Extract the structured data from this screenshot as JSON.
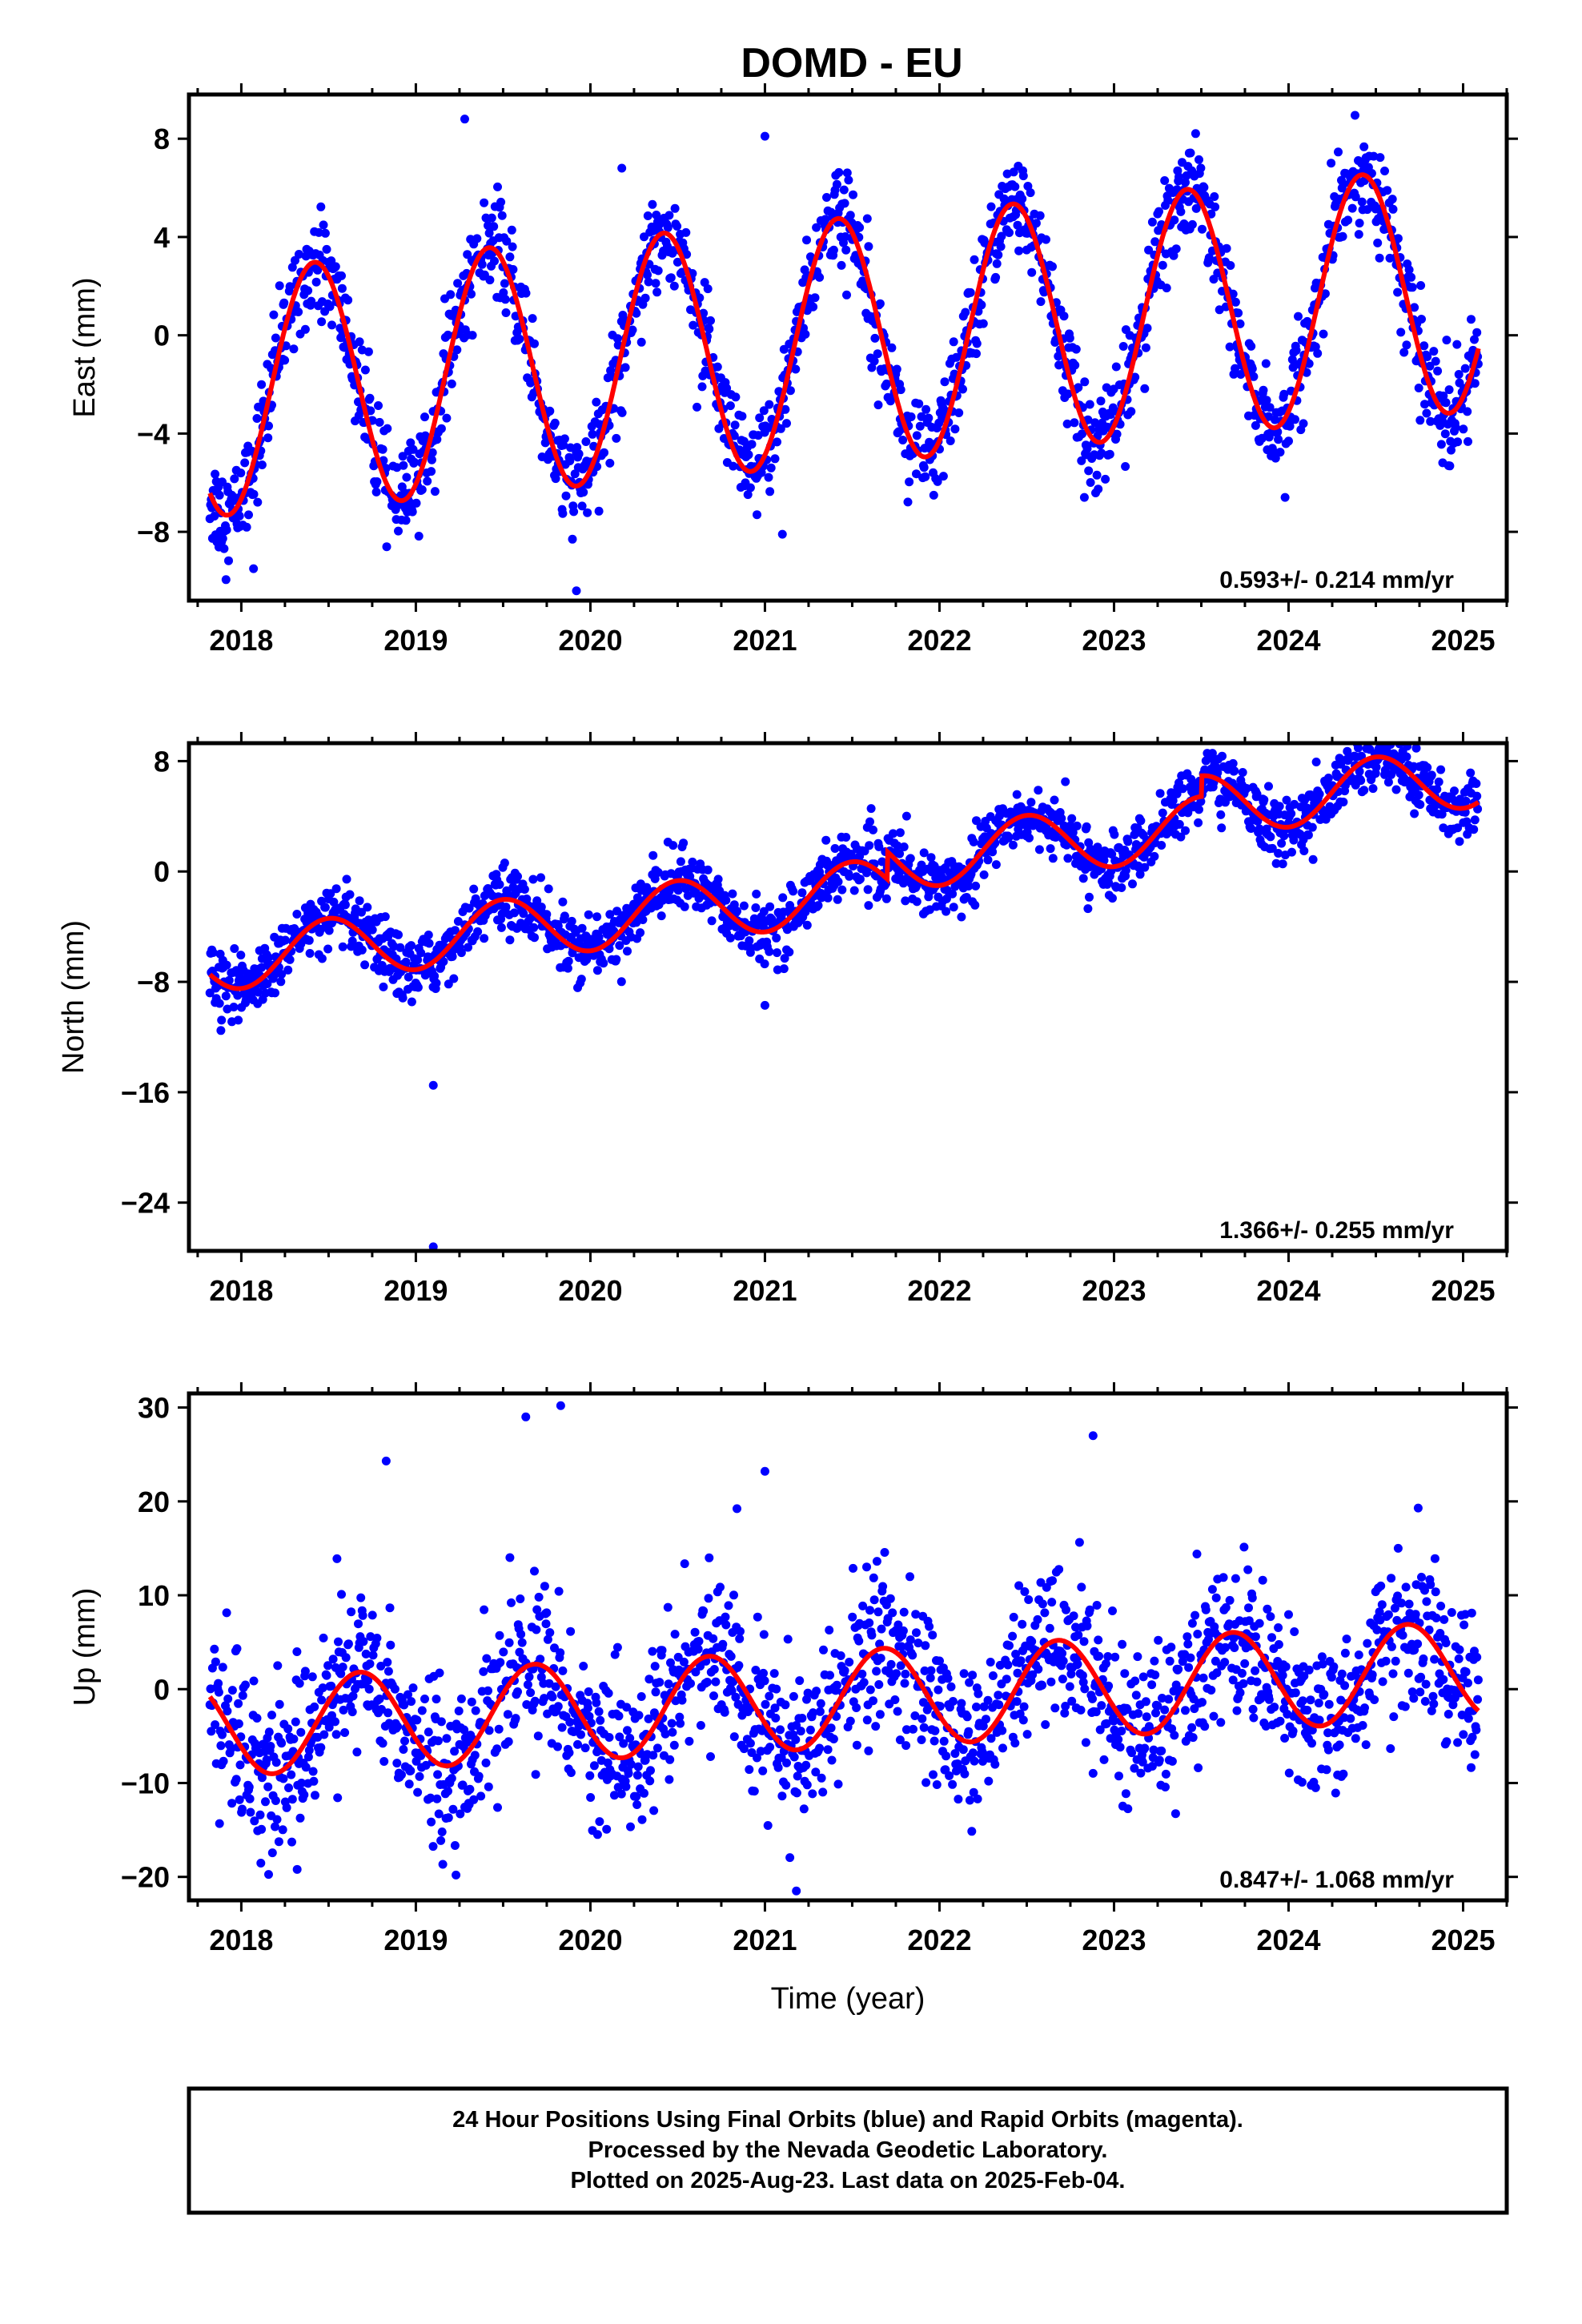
{
  "title": "DOMD - EU",
  "footer": {
    "line1": "24 Hour Positions Using Final Orbits (blue) and Rapid Orbits (magenta).",
    "line2": "Processed by the Nevada Geodetic Laboratory.",
    "line3": "Plotted on 2025-Aug-23. Last data on 2025-Feb-04."
  },
  "colors": {
    "points": "#0000ff",
    "model": "#ff0000",
    "axes": "#000000"
  },
  "chart_data": [
    {
      "type": "scatter",
      "title": "DOMD - EU",
      "ylabel": "East (mm)",
      "xlabel": "",
      "xlim": [
        2017.7,
        2025.25
      ],
      "ylim": [
        -10.8,
        9.8
      ],
      "xticks": [
        "2018",
        "2019",
        "2020",
        "2021",
        "2022",
        "2023",
        "2024",
        "2025"
      ],
      "yticks": [
        8,
        4,
        0,
        -4,
        -8
      ],
      "ytick_labels": [
        "8",
        "4",
        "0",
        "−4",
        "−8"
      ],
      "rate_label": "0.593+/- 0.214 mm/yr",
      "trend": {
        "t0": 2021.5,
        "offset": -0.2,
        "rate": 0.593,
        "annual_amp": 5.0,
        "annual_peak": 2018.42,
        "amp_drift": 0.0
      },
      "scatter_sd": 1.0,
      "outliers": [
        {
          "x": 2019.28,
          "y": 8.8
        },
        {
          "x": 2020.18,
          "y": 6.8
        },
        {
          "x": 2021.0,
          "y": 8.1
        },
        {
          "x": 2019.92,
          "y": -10.4
        },
        {
          "x": 2018.07,
          "y": -9.5
        },
        {
          "x": 2021.1,
          "y": -8.1
        },
        {
          "x": 2022.83,
          "y": -6.6
        },
        {
          "x": 2023.98,
          "y": -6.6
        }
      ],
      "series": [
        {
          "name": "Final Orbits (blue)",
          "kind": "points"
        },
        {
          "name": "",
          "kind": "model"
        }
      ]
    },
    {
      "type": "scatter",
      "ylabel": "North (mm)",
      "xlabel": "",
      "xlim": [
        2017.7,
        2025.25
      ],
      "ylim": [
        -27.5,
        9.3
      ],
      "xticks": [
        "2018",
        "2019",
        "2020",
        "2021",
        "2022",
        "2023",
        "2024",
        "2025"
      ],
      "yticks": [
        8,
        0,
        -8,
        -16,
        -24
      ],
      "ytick_labels": [
        "8",
        "0",
        "−8",
        "−16",
        "−24"
      ],
      "rate_label": "1.366+/- 0.255 mm/yr",
      "trend": {
        "t0": 2021.5,
        "offset": -1.5,
        "rate": 1.366,
        "annual_amp": 2.2,
        "annual_peak": 2018.5,
        "amp_drift": 0.0
      },
      "steps": [
        {
          "x": 2021.7,
          "dy": 2.0
        },
        {
          "x": 2023.5,
          "dy": 1.5
        }
      ],
      "scatter_sd": 1.1,
      "outliers": [
        {
          "x": 2019.1,
          "y": -15.5
        },
        {
          "x": 2019.1,
          "y": -27.2
        },
        {
          "x": 2017.85,
          "y": -9.5
        },
        {
          "x": 2021.0,
          "y": -9.7
        }
      ],
      "series": [
        {
          "name": "Final Orbits (blue)",
          "kind": "points"
        },
        {
          "name": "",
          "kind": "model"
        }
      ]
    },
    {
      "type": "scatter",
      "ylabel": "Up (mm)",
      "xlabel": "Time (year)",
      "xlim": [
        2017.7,
        2025.25
      ],
      "ylim": [
        -22.5,
        31.5
      ],
      "xticks": [
        "2018",
        "2019",
        "2020",
        "2021",
        "2022",
        "2023",
        "2024",
        "2025"
      ],
      "yticks": [
        30,
        20,
        10,
        0,
        -10,
        -20
      ],
      "ytick_labels": [
        "30",
        "20",
        "10",
        "0",
        "−10",
        "−20"
      ],
      "rate_label": "0.847+/- 1.068 mm/yr",
      "trend": {
        "t0": 2021.5,
        "offset": -1.0,
        "rate": 0.847,
        "annual_amp": 5.2,
        "annual_peak": 2018.68,
        "amp_drift": 0.0
      },
      "scatter_sd": 4.2,
      "outliers": [
        {
          "x": 2019.63,
          "y": 29.0
        },
        {
          "x": 2019.83,
          "y": 30.2
        },
        {
          "x": 2018.83,
          "y": 24.3
        },
        {
          "x": 2021.0,
          "y": 23.2
        },
        {
          "x": 2022.88,
          "y": 27.0
        },
        {
          "x": 2019.23,
          "y": -19.8
        },
        {
          "x": 2021.18,
          "y": -21.5
        },
        {
          "x": 2018.32,
          "y": -19.2
        }
      ],
      "series": [
        {
          "name": "Final Orbits (blue)",
          "kind": "points"
        },
        {
          "name": "",
          "kind": "model"
        }
      ]
    }
  ]
}
